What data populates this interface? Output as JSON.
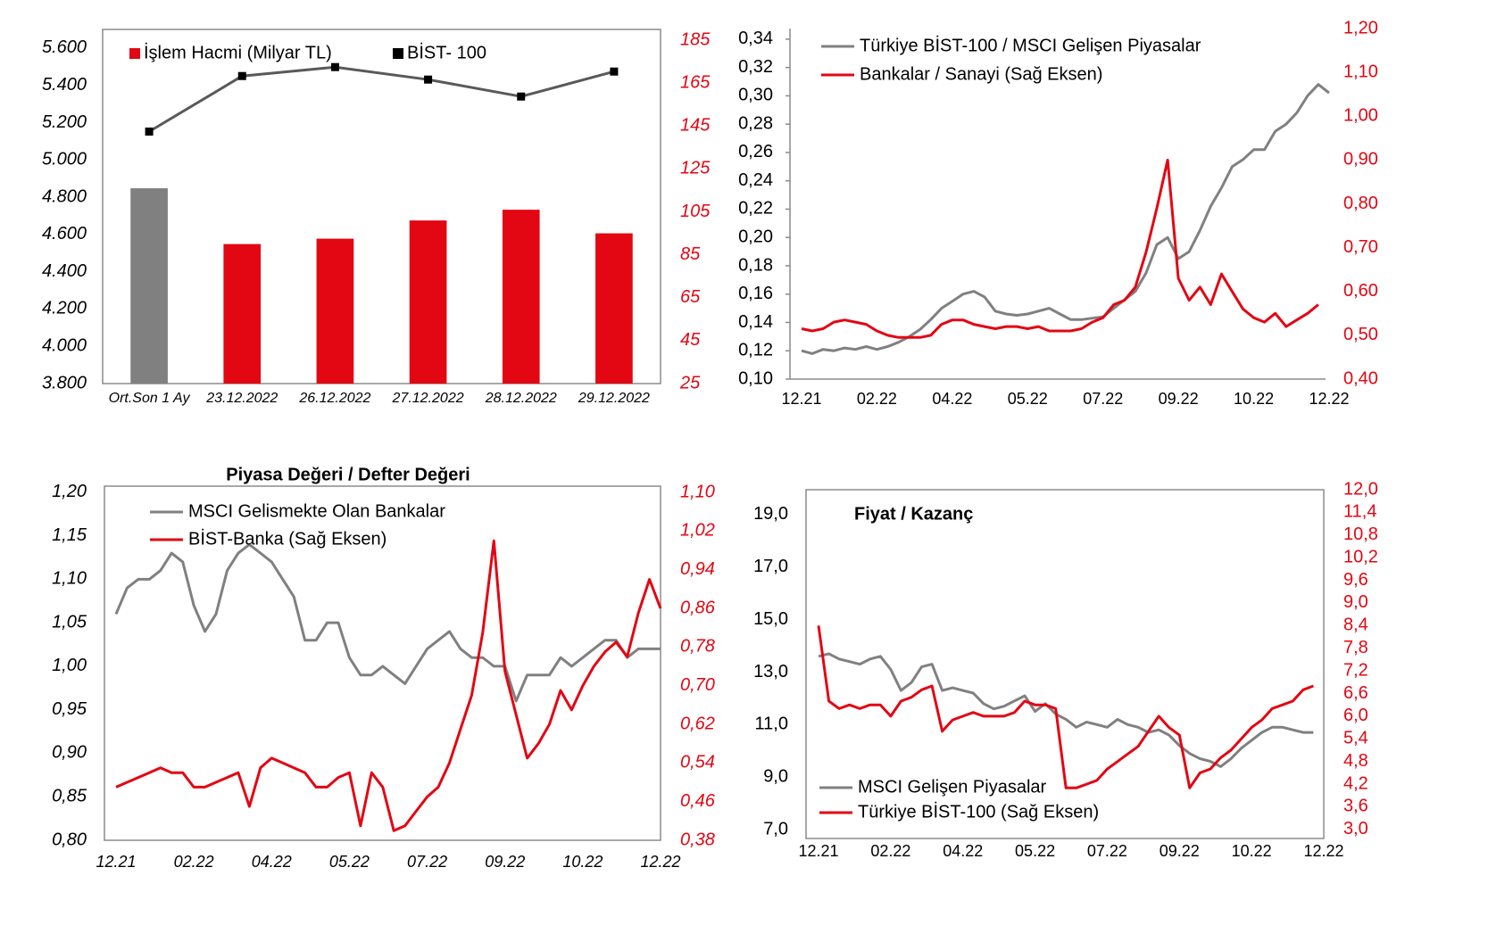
{
  "chart_data": [
    {
      "type": "combo",
      "categories": [
        "Ort.Son 1 Ay",
        "23.12.2022",
        "26.12.2022",
        "27.12.2022",
        "28.12.2022",
        "29.12.2022"
      ],
      "series": [
        {
          "name": "İşlem Hacmi (Milyar TL)",
          "type": "bar",
          "axis": "y2",
          "color": "#e30613",
          "colors": [
            "#808080",
            "#e30613",
            "#e30613",
            "#e30613",
            "#e30613",
            "#e30613"
          ],
          "values": [
            116,
            90,
            92.5,
            101,
            106,
            95
          ]
        },
        {
          "name": "BİST- 100",
          "type": "line",
          "color": "#595959",
          "marker_color": "#000000",
          "values": [
            5152,
            5450,
            5498,
            5431,
            5340,
            5474
          ]
        }
      ],
      "ylim": [
        3800,
        5700
      ],
      "yticks": [
        {
          "value": 3800,
          "label": "3.800"
        },
        {
          "value": 4000,
          "label": "4.000"
        },
        {
          "value": 4200,
          "label": "4.200"
        },
        {
          "value": 4400,
          "label": "4.400"
        },
        {
          "value": 4600,
          "label": "4.600"
        },
        {
          "value": 4800,
          "label": "4.800"
        },
        {
          "value": 5000,
          "label": "5.000"
        },
        {
          "value": 5200,
          "label": "5.200"
        },
        {
          "value": 5400,
          "label": "5.400"
        },
        {
          "value": 5600,
          "label": "5.600"
        }
      ],
      "y2lim": [
        25,
        190
      ],
      "y2ticks": [
        25,
        45,
        65,
        85,
        105,
        125,
        145,
        165,
        185
      ],
      "y2_color": "#e30613"
    },
    {
      "type": "line",
      "categories": [
        "12.21",
        null,
        null,
        null,
        null,
        null,
        null,
        "02.22",
        null,
        null,
        null,
        null,
        null,
        null,
        "04.22",
        null,
        null,
        null,
        null,
        null,
        null,
        "05.22",
        null,
        null,
        null,
        null,
        null,
        null,
        "07.22",
        null,
        null,
        null,
        null,
        null,
        null,
        "09.22",
        null,
        null,
        null,
        null,
        null,
        null,
        "10.22",
        null,
        null,
        null,
        null,
        null,
        null,
        "12.22"
      ],
      "series": [
        {
          "name": "Türkiye BİST-100 / MSCI Gelişen Piyasalar",
          "color": "#808080",
          "values": [
            0.12,
            0.118,
            0.121,
            0.12,
            0.122,
            0.121,
            0.123,
            0.121,
            0.123,
            0.126,
            0.13,
            0.135,
            0.142,
            0.15,
            0.155,
            0.16,
            0.162,
            0.158,
            0.148,
            0.146,
            0.145,
            0.146,
            0.148,
            0.15,
            0.146,
            0.142,
            0.142,
            0.143,
            0.144,
            0.15,
            0.156,
            0.162,
            0.175,
            0.195,
            0.2,
            0.185,
            0.19,
            0.205,
            0.222,
            0.235,
            0.25,
            0.255,
            0.262,
            0.262,
            0.275,
            0.28,
            0.288,
            0.3,
            0.308,
            0.302
          ]
        },
        {
          "name": "Bankalar / Sanayi (Sağ Eksen)",
          "color": "#e30613",
          "axis": "y2",
          "values": [
            0.515,
            0.51,
            0.515,
            0.53,
            0.535,
            0.53,
            0.525,
            0.51,
            0.5,
            0.495,
            0.495,
            0.495,
            0.5,
            0.525,
            0.535,
            0.535,
            0.525,
            0.52,
            0.515,
            0.52,
            0.52,
            0.515,
            0.52,
            0.51,
            0.51,
            0.51,
            0.515,
            0.53,
            0.54,
            0.57,
            0.58,
            0.61,
            0.69,
            0.79,
            0.9,
            0.63,
            0.58,
            0.61,
            0.57,
            0.64,
            0.6,
            0.56,
            0.54,
            0.53,
            0.55,
            0.52,
            0.535,
            0.55,
            0.57,
            null
          ]
        }
      ],
      "ylim": [
        0.1,
        0.3475
      ],
      "yticks": [
        {
          "value": 0.1,
          "label": "0,10"
        },
        {
          "value": 0.12,
          "label": "0,12"
        },
        {
          "value": 0.14,
          "label": "0,14"
        },
        {
          "value": 0.16,
          "label": "0,16"
        },
        {
          "value": 0.18,
          "label": "0,18"
        },
        {
          "value": 0.2,
          "label": "0,20"
        },
        {
          "value": 0.22,
          "label": "0,22"
        },
        {
          "value": 0.24,
          "label": "0,24"
        },
        {
          "value": 0.26,
          "label": "0,26"
        },
        {
          "value": 0.28,
          "label": "0,28"
        },
        {
          "value": 0.3,
          "label": "0,30"
        },
        {
          "value": 0.32,
          "label": "0,32"
        },
        {
          "value": 0.34,
          "label": "0,34"
        }
      ],
      "y2lim": [
        0.4,
        1.2
      ],
      "y2ticks": [
        {
          "value": 0.4,
          "label": "0,40"
        },
        {
          "value": 0.5,
          "label": "0,50"
        },
        {
          "value": 0.6,
          "label": "0,60"
        },
        {
          "value": 0.7,
          "label": "0,70"
        },
        {
          "value": 0.8,
          "label": "0,80"
        },
        {
          "value": 0.9,
          "label": "0,90"
        },
        {
          "value": 1.0,
          "label": "1,00"
        },
        {
          "value": 1.1,
          "label": "1,10"
        },
        {
          "value": 1.2,
          "label": "1,20"
        }
      ],
      "y2_color": "#e30613"
    },
    {
      "type": "line",
      "title": "Piyasa Değeri / Defter Değeri",
      "categories": [
        "12.21",
        null,
        null,
        null,
        null,
        null,
        null,
        "02.22",
        null,
        null,
        null,
        null,
        null,
        null,
        "04.22",
        null,
        null,
        null,
        null,
        null,
        null,
        "05.22",
        null,
        null,
        null,
        null,
        null,
        null,
        "07.22",
        null,
        null,
        null,
        null,
        null,
        null,
        "09.22",
        null,
        null,
        null,
        null,
        null,
        null,
        "10.22",
        null,
        null,
        null,
        null,
        null,
        null,
        "12.22"
      ],
      "series": [
        {
          "name": "MSCI Gelismekte Olan Bankalar",
          "color": "#808080",
          "values": [
            1.06,
            1.09,
            1.1,
            1.1,
            1.11,
            1.13,
            1.12,
            1.07,
            1.04,
            1.06,
            1.11,
            1.13,
            1.14,
            1.13,
            1.12,
            1.1,
            1.08,
            1.03,
            1.03,
            1.05,
            1.05,
            1.01,
            0.99,
            0.99,
            1.0,
            0.99,
            0.98,
            1.0,
            1.02,
            1.03,
            1.04,
            1.02,
            1.01,
            1.01,
            1.0,
            1.0,
            0.96,
            0.99,
            0.99,
            0.99,
            1.01,
            1.0,
            1.01,
            1.02,
            1.03,
            1.03,
            1.01,
            1.02,
            1.02,
            1.02
          ]
        },
        {
          "name": "BİST-Banka (Sağ Eksen)",
          "color": "#e30613",
          "axis": "y2",
          "values": [
            0.49,
            0.5,
            0.51,
            0.52,
            0.53,
            0.52,
            0.52,
            0.49,
            0.49,
            0.5,
            0.51,
            0.52,
            0.45,
            0.53,
            0.55,
            0.54,
            0.53,
            0.52,
            0.49,
            0.49,
            0.51,
            0.52,
            0.41,
            0.52,
            0.49,
            0.4,
            0.41,
            0.44,
            0.47,
            0.49,
            0.54,
            0.61,
            0.68,
            0.81,
            1.0,
            0.73,
            0.64,
            0.55,
            0.58,
            0.62,
            0.69,
            0.65,
            0.7,
            0.74,
            0.77,
            0.79,
            0.76,
            0.85,
            0.92,
            0.86
          ]
        }
      ],
      "ylim": [
        0.8,
        1.207
      ],
      "yticks": [
        {
          "value": 0.8,
          "label": "0,80"
        },
        {
          "value": 0.85,
          "label": "0,85"
        },
        {
          "value": 0.9,
          "label": "0,90"
        },
        {
          "value": 0.95,
          "label": "0,95"
        },
        {
          "value": 1.0,
          "label": "1,00"
        },
        {
          "value": 1.05,
          "label": "1,05"
        },
        {
          "value": 1.1,
          "label": "1,10"
        },
        {
          "value": 1.15,
          "label": "1,15"
        },
        {
          "value": 1.2,
          "label": "1,20"
        }
      ],
      "y2lim": [
        0.38,
        1.113
      ],
      "y2ticks": [
        {
          "value": 0.38,
          "label": "0,38"
        },
        {
          "value": 0.46,
          "label": "0,46"
        },
        {
          "value": 0.54,
          "label": "0,54"
        },
        {
          "value": 0.62,
          "label": "0,62"
        },
        {
          "value": 0.7,
          "label": "0,70"
        },
        {
          "value": 0.78,
          "label": "0,78"
        },
        {
          "value": 0.86,
          "label": "0,86"
        },
        {
          "value": 0.94,
          "label": "0,94"
        },
        {
          "value": 1.02,
          "label": "1,02"
        },
        {
          "value": 1.1,
          "label": "1,10"
        }
      ],
      "y2_color": "#e30613"
    },
    {
      "type": "line",
      "title": "Fiyat / Kazanç",
      "categories": [
        "12.21",
        null,
        null,
        null,
        null,
        null,
        null,
        "02.22",
        null,
        null,
        null,
        null,
        null,
        null,
        "04.22",
        null,
        null,
        null,
        null,
        null,
        null,
        "05.22",
        null,
        null,
        null,
        null,
        null,
        null,
        "07.22",
        null,
        null,
        null,
        null,
        null,
        null,
        "09.22",
        null,
        null,
        null,
        null,
        null,
        null,
        "10.22",
        null,
        null,
        null,
        null,
        null,
        null,
        "12.22"
      ],
      "series": [
        {
          "name": "MSCI Gelişen Piyasalar",
          "color": "#808080",
          "values": [
            13.6,
            13.7,
            13.5,
            13.4,
            13.3,
            13.5,
            13.6,
            13.1,
            12.3,
            12.6,
            13.2,
            13.3,
            12.3,
            12.4,
            12.3,
            12.2,
            11.8,
            11.6,
            11.7,
            11.9,
            12.1,
            11.5,
            11.8,
            11.4,
            11.2,
            10.9,
            11.1,
            11.0,
            10.9,
            11.2,
            11.0,
            10.9,
            10.7,
            10.8,
            10.6,
            10.2,
            9.9,
            9.7,
            9.6,
            9.4,
            9.7,
            10.1,
            10.4,
            10.7,
            10.9,
            10.9,
            10.8,
            10.7,
            10.7,
            null
          ]
        },
        {
          "name": "Türkiye BİST-100 (Sağ Eksen)",
          "color": "#e30613",
          "axis": "y2",
          "values": [
            8.4,
            6.4,
            6.2,
            6.3,
            6.2,
            6.3,
            6.3,
            6.0,
            6.4,
            6.5,
            6.7,
            6.8,
            5.6,
            5.9,
            6.0,
            6.1,
            6.0,
            6.0,
            6.0,
            6.1,
            6.4,
            6.3,
            6.3,
            6.2,
            4.1,
            4.1,
            4.2,
            4.3,
            4.6,
            4.8,
            5.0,
            5.2,
            5.6,
            6.0,
            5.7,
            5.5,
            4.1,
            4.5,
            4.6,
            4.9,
            5.1,
            5.4,
            5.7,
            5.9,
            6.2,
            6.3,
            6.4,
            6.7,
            6.8,
            null
          ]
        }
      ],
      "ylim": [
        6.66,
        19.95
      ],
      "yticks": [
        {
          "value": 7,
          "label": "7,0"
        },
        {
          "value": 9,
          "label": "9,0"
        },
        {
          "value": 11,
          "label": "11,0"
        },
        {
          "value": 13,
          "label": "13,0"
        },
        {
          "value": 15,
          "label": "15,0"
        },
        {
          "value": 17,
          "label": "17,0"
        },
        {
          "value": 19,
          "label": "19,0"
        }
      ],
      "y2lim": [
        2.76,
        12.0
      ],
      "y2ticks": [
        {
          "value": 3.0,
          "label": "3,0"
        },
        {
          "value": 3.6,
          "label": "3,6"
        },
        {
          "value": 4.2,
          "label": "4,2"
        },
        {
          "value": 4.8,
          "label": "4,8"
        },
        {
          "value": 5.4,
          "label": "5,4"
        },
        {
          "value": 6.0,
          "label": "6,0"
        },
        {
          "value": 6.6,
          "label": "6,6"
        },
        {
          "value": 7.2,
          "label": "7,2"
        },
        {
          "value": 7.8,
          "label": "7,8"
        },
        {
          "value": 8.4,
          "label": "8,4"
        },
        {
          "value": 9.0,
          "label": "9,0"
        },
        {
          "value": 9.6,
          "label": "9,6"
        },
        {
          "value": 10.2,
          "label": "10,2"
        },
        {
          "value": 10.8,
          "label": "10,8"
        },
        {
          "value": 11.4,
          "label": "11,4"
        },
        {
          "value": 12.0,
          "label": "12,0"
        }
      ],
      "y2_color": "#e30613"
    }
  ]
}
